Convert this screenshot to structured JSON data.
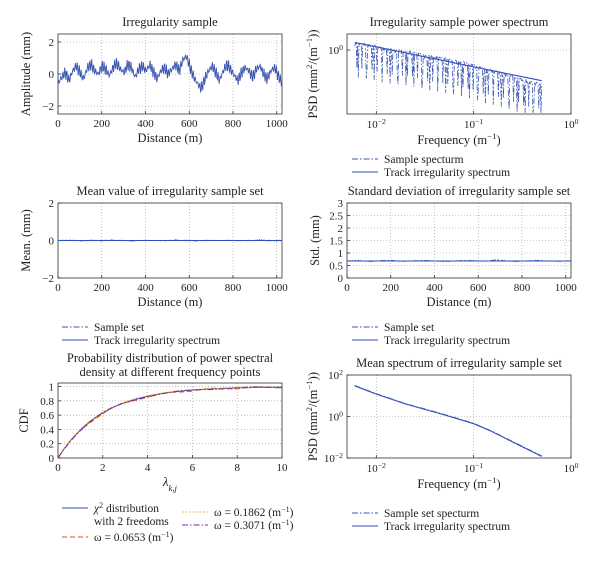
{
  "colors": {
    "sample": "#3a56b0",
    "track": "#2f4fbf",
    "chi2": "#2f4fbf",
    "w1": "#d9531e",
    "w2": "#e0b020",
    "w3": "#7a2f9e"
  },
  "chart_data": [
    {
      "id": "p1",
      "type": "line",
      "title": "Irregularity sample",
      "xlabel": "Distance (m)",
      "ylabel": "Amplitude (mm)",
      "xlim": [
        0,
        1024
      ],
      "ylim": [
        -2.5,
        2.5
      ],
      "xticks": [
        0,
        200,
        400,
        600,
        800,
        1000
      ],
      "xticklabels": [
        "0",
        "200",
        "400",
        "600",
        "800",
        "1000"
      ],
      "yticks": [
        -2,
        0,
        2
      ],
      "yticklabels": [
        "−2",
        "0",
        "2"
      ],
      "grid": true,
      "legend": "none",
      "series": [
        {
          "values": [
            -0.6,
            -0.2,
            0.1,
            -0.4,
            0.2,
            0.5,
            0.1,
            -0.3,
            0.4,
            0.6,
            0.2,
            0.0,
            0.5,
            0.3,
            -0.1,
            0.4,
            0.7,
            0.3,
            0.1,
            0.6,
            0.4,
            -0.2,
            0.3,
            0.5,
            0.2,
            0.6,
            0.1,
            -0.3,
            0.2,
            0.4,
            0.0,
            0.3,
            0.6,
            0.2,
            0.9,
            1.1,
            0.4,
            -0.2,
            -0.6,
            -0.9,
            -0.3,
            0.2,
            0.5,
            0.1,
            -0.4,
            0.2,
            0.6,
            0.3,
            -0.1,
            -0.4,
            0.1,
            0.4,
            0.2,
            -0.2,
            0.3,
            0.5,
            0.0,
            -0.3,
            0.2,
            0.4,
            -0.1,
            -0.6
          ]
        }
      ]
    },
    {
      "id": "p2",
      "type": "line",
      "title": "Irregularity sample power spectrum",
      "xlabel": "Frequency (m",
      "xlabel_sup": "−1",
      "xlabel_end": ")",
      "ylabel_main": "PSD (mm",
      "ylabel_sup1": "2",
      "ylabel_mid": "/(m",
      "ylabel_sup2": "−1",
      "ylabel_end": "))",
      "xscale": "log",
      "yscale": "log",
      "xlim": [
        0.005,
        1
      ],
      "ylim": [
        0.0001,
        10
      ],
      "xticks": [
        0.01,
        0.1,
        1
      ],
      "xticklabels": [
        "10",
        "10",
        "10"
      ],
      "xticksup": [
        "−2",
        "−1",
        "0"
      ],
      "yticks": [
        1
      ],
      "yticklabels": [
        "10"
      ],
      "yticksup": [
        "0"
      ],
      "grid": true,
      "legend": "below",
      "series": [
        {
          "name": "Sample spectrum",
          "style": "dashdot",
          "x": [
            0.006,
            0.008,
            0.011,
            0.015,
            0.02,
            0.03,
            0.045,
            0.06,
            0.09,
            0.13,
            0.18,
            0.25,
            0.35,
            0.45
          ],
          "y": [
            2.5,
            2.0,
            1.1,
            0.9,
            0.7,
            0.4,
            0.3,
            0.2,
            0.12,
            0.06,
            0.04,
            0.02,
            0.01,
            0.007
          ]
        },
        {
          "name": "Track irregularity spectrum",
          "style": "solid",
          "x": [
            0.006,
            0.5
          ],
          "y": [
            3.0,
            0.012
          ]
        }
      ],
      "legend_entries": [
        "Sample specturm",
        "Track irregularity spectrum"
      ]
    },
    {
      "id": "p3",
      "type": "line",
      "title": "Mean value of irregularity sample set",
      "xlabel": "Distance (m)",
      "ylabel": "Mean. (mm)",
      "xlim": [
        0,
        1024
      ],
      "ylim": [
        -2,
        2
      ],
      "xticks": [
        0,
        200,
        400,
        600,
        800,
        1000
      ],
      "xticklabels": [
        "0",
        "200",
        "400",
        "600",
        "800",
        "1000"
      ],
      "yticks": [
        -2,
        0,
        2
      ],
      "yticklabels": [
        "−2",
        "0",
        "2"
      ],
      "grid": true,
      "legend": "below",
      "series": [
        {
          "name": "Sample set",
          "style": "dashdot",
          "values": [
            0.0,
            0.02,
            -0.02,
            0.01,
            -0.01,
            0.02,
            0.0,
            -0.02,
            0.01,
            0.0,
            -0.01,
            0.02,
            0.0,
            -0.02,
            0.01,
            0.0,
            0.01,
            -0.01,
            0.0,
            0.02,
            -0.01,
            0.0
          ]
        },
        {
          "name": "Track irregularity spectrum",
          "style": "solid",
          "values": [
            0,
            0
          ]
        }
      ],
      "legend_entries": [
        "Sample set",
        "Track irregularity spectrum"
      ]
    },
    {
      "id": "p4",
      "type": "line",
      "title": "Standard deviation of irregularity sample set",
      "xlabel": "Distance (m)",
      "ylabel": "Std. (mm)",
      "xlim": [
        0,
        1024
      ],
      "ylim": [
        0,
        3
      ],
      "xticks": [
        0,
        200,
        400,
        600,
        800,
        1000
      ],
      "xticklabels": [
        "0",
        "200",
        "400",
        "600",
        "800",
        "1000"
      ],
      "yticks": [
        0,
        0.5,
        1,
        1.5,
        2,
        2.5,
        3
      ],
      "yticklabels": [
        "0",
        "0.5",
        "1",
        "1.5",
        "2",
        "2.5",
        "3"
      ],
      "grid": true,
      "legend": "below",
      "series": [
        {
          "name": "Sample set",
          "style": "dashdot",
          "values": [
            0.68,
            0.7,
            0.66,
            0.69,
            0.71,
            0.67,
            0.68,
            0.7,
            0.69,
            0.66,
            0.68,
            0.7,
            0.69,
            0.67,
            0.73,
            0.68,
            0.66,
            0.69,
            0.7,
            0.68,
            0.67,
            0.69
          ]
        },
        {
          "name": "Track irregularity spectrum",
          "style": "solid",
          "values": [
            0.68,
            0.68
          ]
        }
      ],
      "legend_entries": [
        "Sample set",
        "Track irregularity spectrum"
      ]
    },
    {
      "id": "p5",
      "type": "line",
      "title": "Probability distribution of power spectral",
      "title2": "density at different frequency points",
      "xlabel": "λ",
      "xlabel_sub": "k,j",
      "ylabel": "CDF",
      "xlim": [
        0,
        10
      ],
      "ylim": [
        0,
        1.05
      ],
      "xticks": [
        0,
        2,
        4,
        6,
        8,
        10
      ],
      "xticklabels": [
        "0",
        "2",
        "4",
        "6",
        "8",
        "10"
      ],
      "yticks": [
        0,
        0.2,
        0.4,
        0.6,
        0.8,
        1
      ],
      "yticklabels": [
        "0",
        "0.2",
        "0.4",
        "0.6",
        "0.8",
        "1"
      ],
      "grid": true,
      "legend": "below",
      "series": [
        {
          "name": "χ2 distribution with 2 freedoms",
          "style": "solid",
          "func": "chi2"
        },
        {
          "name": "ω = 0.0653 (m−1)",
          "style": "dashed",
          "func": "w1"
        },
        {
          "name": "ω = 0.1862 (m−1)",
          "style": "dotted",
          "func": "w2"
        },
        {
          "name": "ω = 0.3071 (m−1)",
          "style": "dashdot",
          "func": "w3"
        }
      ],
      "legend_entries": {
        "chi2_a": "χ",
        "chi2_sup": "2",
        "chi2_b": " distribution",
        "chi2_line2": "with 2 freedoms",
        "w1": "ω = 0.0653 (m",
        "w2": "ω = 0.1862 (m",
        "w3": "ω = 0.3071 (m",
        "unit_sup": "−1",
        "unit_end": ")"
      }
    },
    {
      "id": "p6",
      "type": "line",
      "title": "Mean spectrum of irregularity sample set",
      "xlabel": "Frequency (m",
      "xlabel_sup": "−1",
      "xlabel_end": ")",
      "ylabel_main": "PSD (mm",
      "ylabel_sup1": "2",
      "ylabel_mid": "/(m",
      "ylabel_sup2": "−1",
      "ylabel_end": "))",
      "xscale": "log",
      "yscale": "log",
      "xlim": [
        0.005,
        1
      ],
      "ylim": [
        0.01,
        100
      ],
      "xticks": [
        0.01,
        0.1,
        1
      ],
      "xticklabels": [
        "10",
        "10",
        "10"
      ],
      "xticksup": [
        "−2",
        "−1",
        "0"
      ],
      "yticks": [
        0.01,
        1,
        100
      ],
      "yticklabels": [
        "10",
        "10",
        "10"
      ],
      "yticksup": [
        "−2",
        "0",
        "2"
      ],
      "grid": true,
      "legend": "below",
      "series": [
        {
          "name": "Sample set specturm",
          "style": "dashdot",
          "x": [
            0.006,
            0.01,
            0.02,
            0.05,
            0.1,
            0.15,
            0.25,
            0.5
          ],
          "y": [
            30,
            12,
            4,
            1.2,
            0.45,
            0.2,
            0.06,
            0.012
          ]
        },
        {
          "name": "Track irregularity spectrum",
          "style": "solid",
          "x": [
            0.006,
            0.01,
            0.02,
            0.05,
            0.1,
            0.15,
            0.25,
            0.5
          ],
          "y": [
            30,
            12,
            4,
            1.2,
            0.45,
            0.2,
            0.06,
            0.012
          ]
        }
      ],
      "legend_entries": [
        "Sample set specturm",
        "Track irregularity spectrum"
      ]
    }
  ]
}
